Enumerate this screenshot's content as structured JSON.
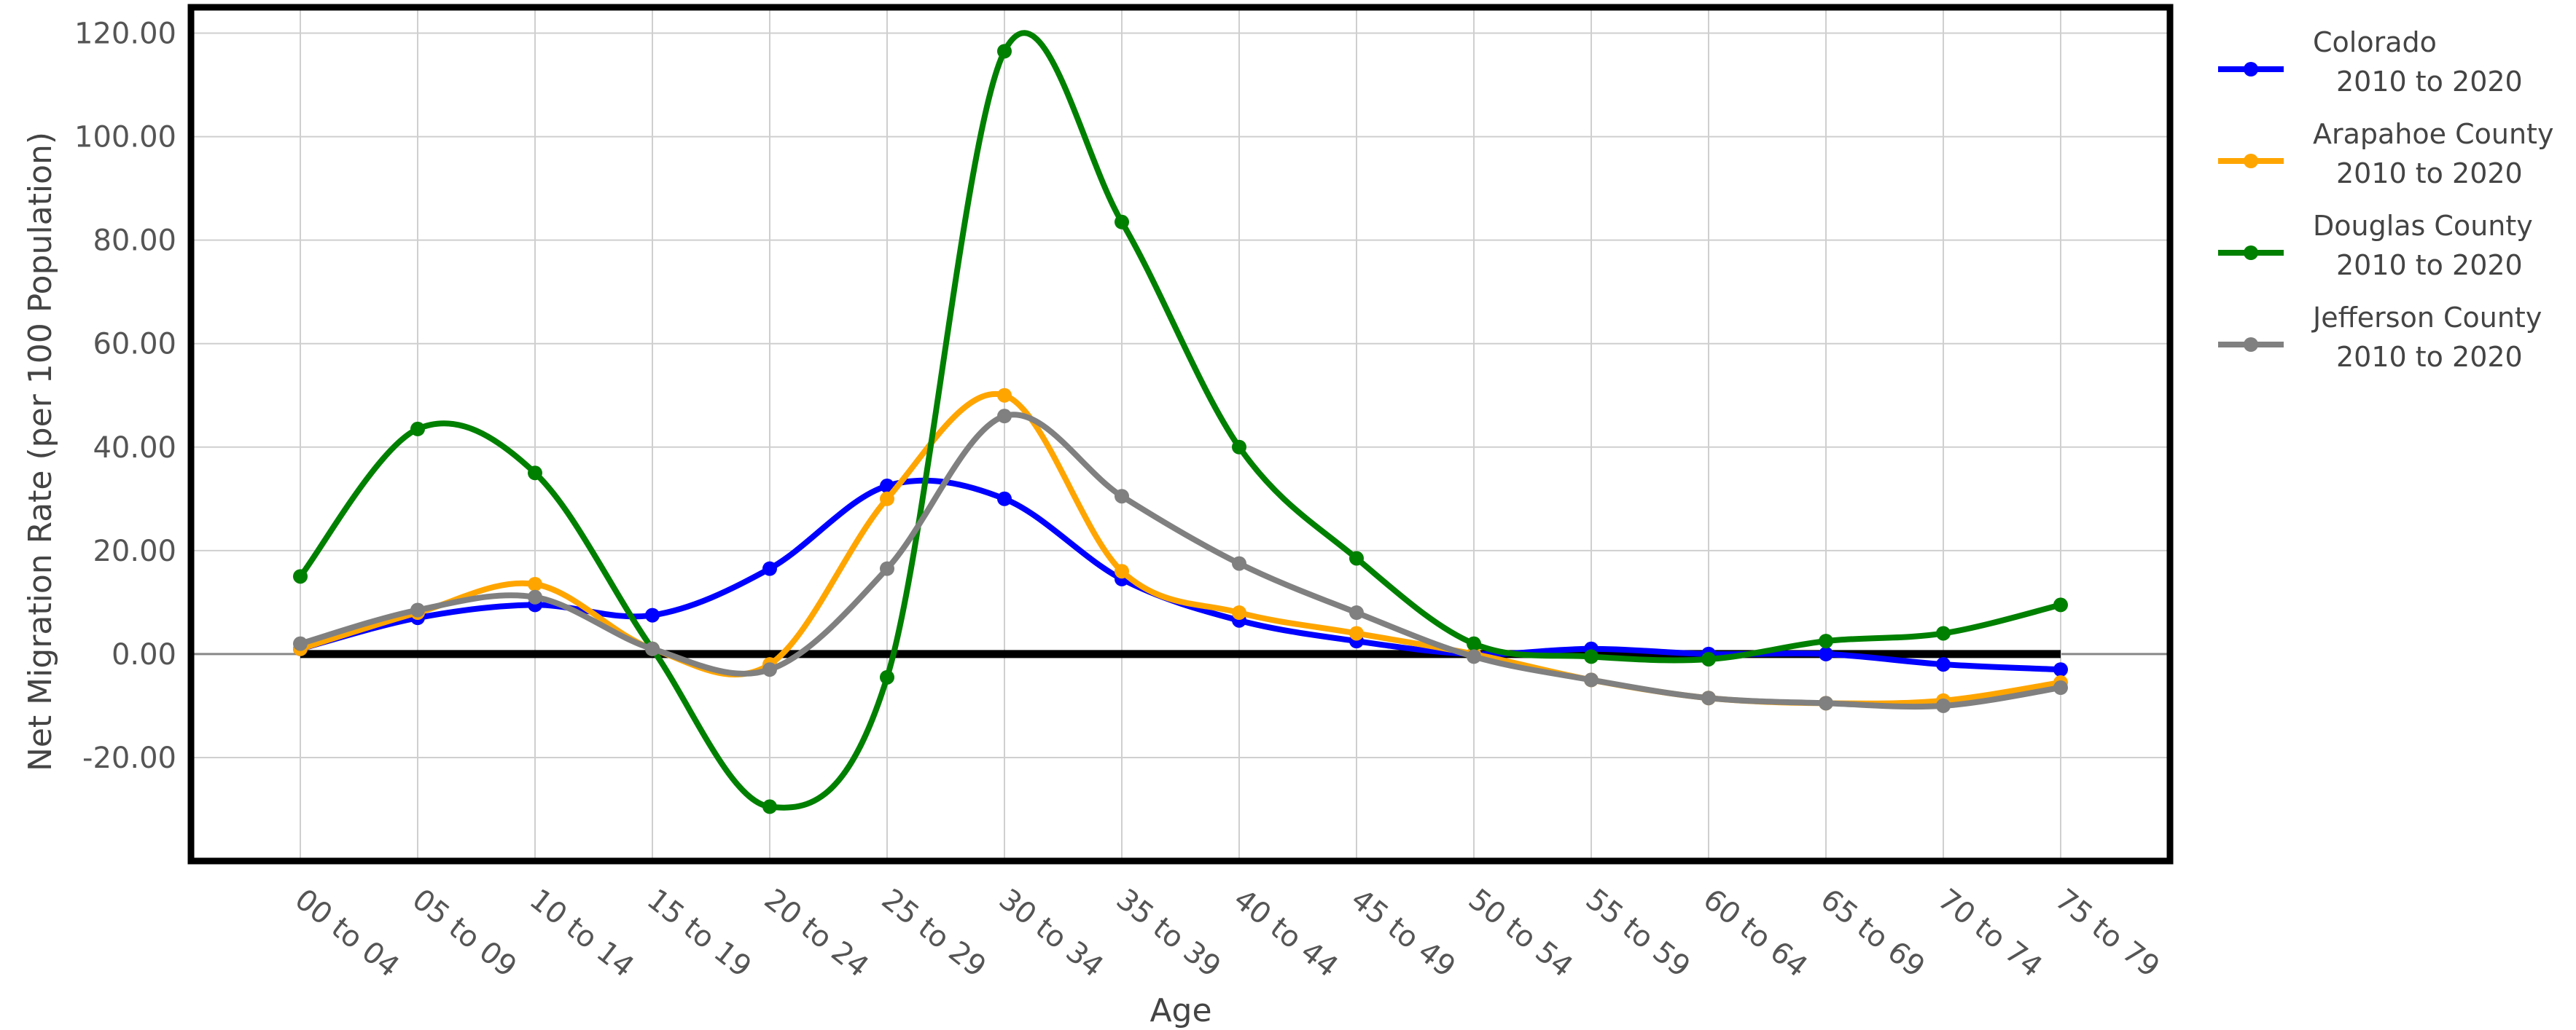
{
  "chart_data": {
    "type": "line",
    "xlabel": "Age",
    "ylabel": "Net Migration Rate (per 100 Population)",
    "ylim": [
      -40,
      125
    ],
    "yticks": [
      -20,
      0,
      20,
      40,
      60,
      80,
      100,
      120
    ],
    "ytick_labels": [
      "-20.00",
      "0.00",
      "20.00",
      "40.00",
      "60.00",
      "80.00",
      "100.00",
      "120.00"
    ],
    "categories": [
      "00 to 04",
      "05 to 09",
      "10 to 14",
      "15 to 19",
      "20 to 24",
      "25 to 29",
      "30 to 34",
      "35 to 39",
      "40 to 44",
      "45 to 49",
      "50 to 54",
      "55 to 59",
      "60 to 64",
      "65 to 69",
      "70 to 74",
      "75 to 79"
    ],
    "grid": true,
    "legend_position": "right",
    "series": [
      {
        "name": "Colorado",
        "period": "2010 to 2020",
        "color": "#0000ff",
        "values": [
          1,
          7,
          9.5,
          7.5,
          16.5,
          32.5,
          30,
          14.5,
          6.5,
          2.5,
          0,
          1,
          0,
          0,
          -2,
          -3
        ]
      },
      {
        "name": "Arapahoe County",
        "period": "2010 to 2020",
        "color": "#ffa500",
        "values": [
          1,
          8,
          13.5,
          1,
          -2,
          30,
          50,
          16,
          8,
          4,
          0,
          -5,
          -8.5,
          -9.5,
          -9,
          -5.5
        ]
      },
      {
        "name": "Douglas County",
        "period": "2010 to 2020",
        "color": "#008000",
        "values": [
          15,
          43.5,
          35,
          1,
          -29.5,
          -4.5,
          116.5,
          83.5,
          40,
          18.5,
          2,
          -0.5,
          -1,
          2.5,
          4,
          9.5
        ]
      },
      {
        "name": "Jefferson County",
        "period": "2010 to 2020",
        "color": "#808080",
        "values": [
          2,
          8.5,
          11,
          1,
          -3,
          16.5,
          46,
          30.5,
          17.5,
          8,
          -0.5,
          -5,
          -8.5,
          -9.5,
          -10,
          -6.5
        ]
      }
    ]
  }
}
